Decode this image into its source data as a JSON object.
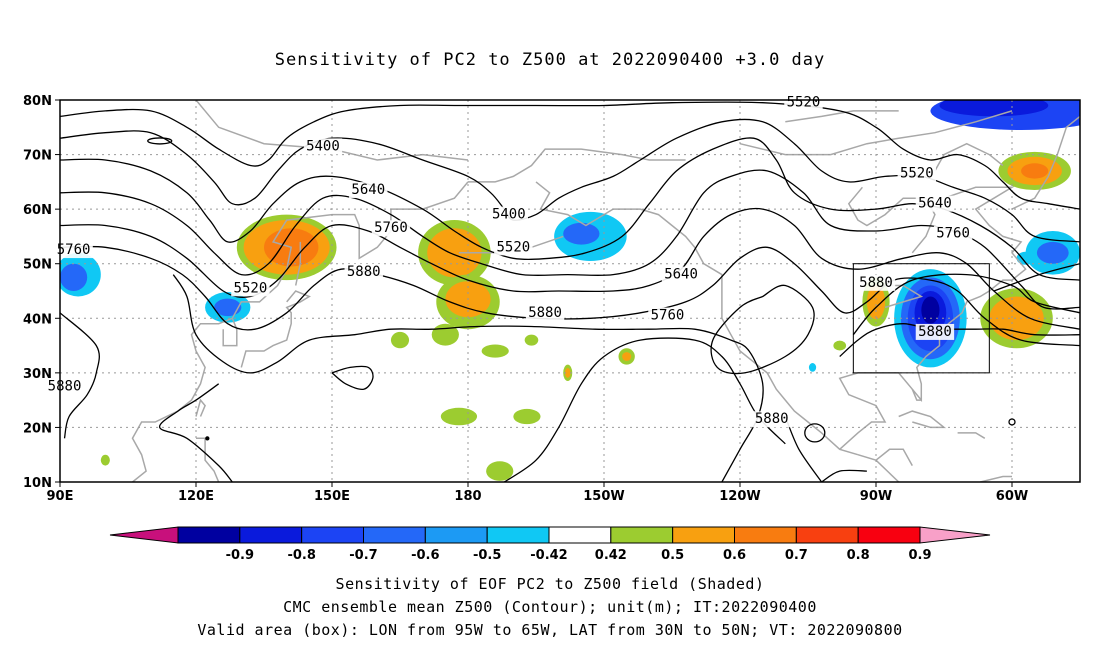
{
  "title": "Sensitivity of PC2 to Z500 at 2022090400 +3.0 day",
  "lat_labels": [
    "80N",
    "70N",
    "60N",
    "50N",
    "40N",
    "30N",
    "20N",
    "10N"
  ],
  "lon_labels": [
    "90E",
    "120E",
    "150E",
    "180",
    "150W",
    "120W",
    "90W",
    "60W"
  ],
  "contour_labels": [
    {
      "text": "5400",
      "lon": 148,
      "lat": 71.5
    },
    {
      "text": "5520",
      "lon": 254,
      "lat": 79.5
    },
    {
      "text": "5520",
      "lon": 279,
      "lat": 66.5
    },
    {
      "text": "5640",
      "lon": 158,
      "lat": 63.5
    },
    {
      "text": "5760",
      "lon": 93,
      "lat": 52.5
    },
    {
      "text": "5760",
      "lon": 163,
      "lat": 56.5
    },
    {
      "text": "5520",
      "lon": 132,
      "lat": 45.5
    },
    {
      "text": "5880",
      "lon": 157,
      "lat": 48.5
    },
    {
      "text": "5400",
      "lon": 189,
      "lat": 59.0
    },
    {
      "text": "5520",
      "lon": 190,
      "lat": 53.0
    },
    {
      "text": "5640",
      "lon": 227,
      "lat": 48.0
    },
    {
      "text": "5760",
      "lon": 224,
      "lat": 40.5
    },
    {
      "text": "5880",
      "lon": 197,
      "lat": 41.0
    },
    {
      "text": "5880",
      "lon": 91,
      "lat": 27.5
    },
    {
      "text": "5880",
      "lon": 247,
      "lat": 21.5
    },
    {
      "text": "5880",
      "lon": 270,
      "lat": 46.5
    },
    {
      "text": "5880",
      "lon": 283,
      "lat": 37.5
    },
    {
      "text": "5640",
      "lon": 283,
      "lat": 61.0
    },
    {
      "text": "5760",
      "lon": 287,
      "lat": 55.5
    }
  ],
  "valid_box": {
    "lon_min": 265,
    "lon_max": 295,
    "lat_min": 30,
    "lat_max": 50
  },
  "colorbar": {
    "labels": [
      "-0.9",
      "-0.8",
      "-0.7",
      "-0.6",
      "-0.5",
      "-0.42",
      "0.42",
      "0.5",
      "0.6",
      "0.7",
      "0.8",
      "0.9"
    ],
    "colors": [
      "#0000a0",
      "#0a1adc",
      "#1c44f4",
      "#2468f8",
      "#1c9af4",
      "#10c8f4",
      "#ffffff",
      "#9ccc30",
      "#f8a010",
      "#f87c10",
      "#f84010",
      "#f80010"
    ],
    "under_color": "#c8107c",
    "over_color": "#f8a0c8"
  },
  "footer": {
    "line1": "Sensitivity of EOF PC2 to Z500 field (Shaded)",
    "line2": "CMC ensemble mean Z500 (Contour); unit(m); IT:2022090400",
    "line3": "Valid area (box): LON from 95W to 65W, LAT from 30N to 50N; VT: 2022090800"
  }
}
